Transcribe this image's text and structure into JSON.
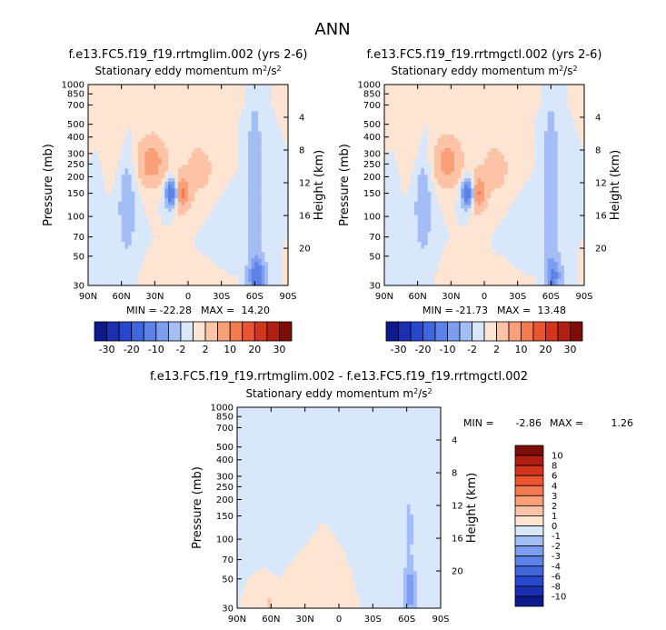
{
  "page_title": "ANN",
  "chart_data": [
    {
      "type": "heatmap",
      "id": "p1",
      "title": "f.e13.FC5.f19_f19.rrtmglim.002 (yrs 2-6)",
      "subtitle": "Stationary eddy momentum",
      "units_base": "m",
      "units_sup1": "2",
      "units_mid": "/s",
      "units_sup2": "2",
      "ylabel": "Pressure (mb)",
      "ylabel_right": "Height (km)",
      "xlim": [
        90,
        -90
      ],
      "x_ticks": [
        "90N",
        "60N",
        "30N",
        "0",
        "30S",
        "60S",
        "90S"
      ],
      "y_ticks": [
        "30",
        "50",
        "70",
        "100",
        "150",
        "200",
        "250",
        "300",
        "400",
        "500",
        "700",
        "850",
        "1000"
      ],
      "height_ticks": [
        "20",
        "16",
        "12",
        "8",
        "4"
      ],
      "min_label": "MIN =",
      "min_value": "-22.28",
      "max_label": "MAX =",
      "max_value": "14.20",
      "features": [
        {
          "lat": 8,
          "p": 150,
          "value": 14.2,
          "lat_w": 8,
          "lp_w": 0.28
        },
        {
          "lat": 33,
          "p": 260,
          "value": 9,
          "lat_w": 12,
          "lp_w": 0.4
        },
        {
          "lat": -10,
          "p": 230,
          "value": 3,
          "lat_w": 16,
          "lp_w": 0.55
        },
        {
          "lat": 72,
          "p": 400,
          "value": 2,
          "lat_w": 14,
          "lp_w": 0.6
        },
        {
          "lat": 12,
          "p": 600,
          "value": 1.5,
          "lat_w": 20,
          "lp_w": 0.3
        },
        {
          "lat": -15,
          "p": 850,
          "value": 1.2,
          "lat_w": 25,
          "lp_w": 0.25
        },
        {
          "lat": -5,
          "p": 35,
          "value": 1.5,
          "lat_w": 30,
          "lp_w": 0.25
        },
        {
          "lat": 14,
          "p": 150,
          "value": -22.28,
          "lat_w": 6,
          "lp_w": 0.24
        },
        {
          "lat": 55,
          "p": 120,
          "value": -4,
          "lat_w": 8,
          "lp_w": 0.9
        },
        {
          "lat": -62,
          "p": 35,
          "value": -14,
          "lat_w": 7,
          "lp_w": 0.35
        },
        {
          "lat": -60,
          "p": 180,
          "value": -6,
          "lat_w": 6,
          "lp_w": 1.2
        },
        {
          "lat": -35,
          "p": 70,
          "value": -1.5,
          "lat_w": 14,
          "lp_w": 0.6
        },
        {
          "lat": 82,
          "p": 200,
          "value": -1.2,
          "lat_w": 6,
          "lp_w": 1.0
        }
      ]
    },
    {
      "type": "heatmap",
      "id": "p2",
      "title": "f.e13.FC5.f19_f19.rrtmgctl.002 (yrs 2-6)",
      "subtitle": "Stationary eddy momentum",
      "units_base": "m",
      "units_sup1": "2",
      "units_mid": "/s",
      "units_sup2": "2",
      "ylabel": "Pressure (mb)",
      "ylabel_right": "Height (km)",
      "xlim": [
        90,
        -90
      ],
      "x_ticks": [
        "90N",
        "60N",
        "30N",
        "0",
        "30S",
        "60S",
        "90S"
      ],
      "y_ticks": [
        "30",
        "50",
        "70",
        "100",
        "150",
        "200",
        "250",
        "300",
        "400",
        "500",
        "700",
        "850",
        "1000"
      ],
      "height_ticks": [
        "20",
        "16",
        "12",
        "8",
        "4"
      ],
      "min_label": "MIN =",
      "min_value": "-21.73",
      "max_label": "MAX =",
      "max_value": "13.48",
      "features": [
        {
          "lat": 8,
          "p": 150,
          "value": 13.48,
          "lat_w": 8,
          "lp_w": 0.28
        },
        {
          "lat": 33,
          "p": 260,
          "value": 8.5,
          "lat_w": 12,
          "lp_w": 0.4
        },
        {
          "lat": -10,
          "p": 230,
          "value": 3,
          "lat_w": 16,
          "lp_w": 0.55
        },
        {
          "lat": 72,
          "p": 400,
          "value": 2,
          "lat_w": 14,
          "lp_w": 0.6
        },
        {
          "lat": 12,
          "p": 600,
          "value": 1.5,
          "lat_w": 20,
          "lp_w": 0.3
        },
        {
          "lat": -15,
          "p": 850,
          "value": 1.2,
          "lat_w": 25,
          "lp_w": 0.25
        },
        {
          "lat": -5,
          "p": 35,
          "value": 1.5,
          "lat_w": 30,
          "lp_w": 0.25
        },
        {
          "lat": 14,
          "p": 150,
          "value": -21.73,
          "lat_w": 6,
          "lp_w": 0.24
        },
        {
          "lat": 55,
          "p": 120,
          "value": -4,
          "lat_w": 8,
          "lp_w": 0.9
        },
        {
          "lat": -62,
          "p": 35,
          "value": -11,
          "lat_w": 7,
          "lp_w": 0.35
        },
        {
          "lat": -60,
          "p": 180,
          "value": -6,
          "lat_w": 6,
          "lp_w": 1.2
        },
        {
          "lat": -35,
          "p": 70,
          "value": -1.5,
          "lat_w": 14,
          "lp_w": 0.6
        },
        {
          "lat": 82,
          "p": 200,
          "value": -1.2,
          "lat_w": 6,
          "lp_w": 1.0
        }
      ]
    },
    {
      "type": "heatmap",
      "id": "p3",
      "title": "f.e13.FC5.f19_f19.rrtmglim.002 - f.e13.FC5.f19_f19.rrtmgctl.002",
      "subtitle": "Stationary eddy momentum",
      "units_base": "m",
      "units_sup1": "2",
      "units_mid": "/s",
      "units_sup2": "2",
      "ylabel": "Pressure (mb)",
      "ylabel_right": "Height (km)",
      "xlim": [
        90,
        -90
      ],
      "x_ticks": [
        "90N",
        "60N",
        "30N",
        "0",
        "30S",
        "60S",
        "90S"
      ],
      "y_ticks": [
        "30",
        "50",
        "70",
        "100",
        "150",
        "200",
        "250",
        "300",
        "400",
        "500",
        "700",
        "850",
        "1000"
      ],
      "height_ticks": [
        "20",
        "16",
        "12",
        "8",
        "4"
      ],
      "min_label": "MIN =",
      "min_value": "-2.86",
      "max_label": "MAX =",
      "max_value": "1.26",
      "features": [
        {
          "lat": -63,
          "p": 40,
          "value": -2.86,
          "lat_w": 6,
          "lp_w": 0.4
        },
        {
          "lat": -62,
          "p": 120,
          "value": -1.3,
          "lat_w": 6,
          "lp_w": 0.8
        },
        {
          "lat": 62,
          "p": 33,
          "value": 1.26,
          "lat_w": 4,
          "lp_w": 0.15
        },
        {
          "lat": -25,
          "p": 250,
          "value": -0.8,
          "lat_w": 16,
          "lp_w": 0.7
        },
        {
          "lat": 35,
          "p": 400,
          "value": -0.6,
          "lat_w": 10,
          "lp_w": 0.8
        },
        {
          "lat": 5,
          "p": 900,
          "value": -0.6,
          "lat_w": 15,
          "lp_w": 0.2
        },
        {
          "lat": 80,
          "p": 700,
          "value": -0.6,
          "lat_w": 6,
          "lp_w": 0.5
        },
        {
          "lat": -80,
          "p": 300,
          "value": -0.5,
          "lat_w": 5,
          "lp_w": 1.0
        },
        {
          "lat": 15,
          "p": 50,
          "value": 0.6,
          "lat_w": 12,
          "lp_w": 0.4
        }
      ]
    }
  ],
  "colorbars": {
    "top": {
      "orientation": "horizontal",
      "labels": [
        "-30",
        "-20",
        "-10",
        "-2",
        "2",
        "10",
        "20",
        "30"
      ],
      "colors": [
        "#0c1a8c",
        "#1b30b0",
        "#2947cc",
        "#3f66dd",
        "#5c82e8",
        "#7d9df0",
        "#a3bdf5",
        "#d9e7fb",
        "#fde4d3",
        "#fcc3a7",
        "#f9a079",
        "#f47a52",
        "#eb5431",
        "#d3341c",
        "#b01f12",
        "#7e0c08"
      ]
    },
    "bottom": {
      "orientation": "vertical",
      "labels": [
        "10",
        "8",
        "6",
        "4",
        "3",
        "2",
        "1",
        "0",
        "-1",
        "-2",
        "-3",
        "-4",
        "-6",
        "-8",
        "-10"
      ],
      "colors": [
        "#7e0c08",
        "#b01f12",
        "#d3341c",
        "#eb5431",
        "#f47a52",
        "#f9a079",
        "#fcc3a7",
        "#fde4d3",
        "#d9e7fb",
        "#a3bdf5",
        "#7d9df0",
        "#5c82e8",
        "#3f66dd",
        "#2947cc",
        "#1b30b0",
        "#0c1a8c"
      ]
    }
  },
  "levels_top": [
    -30,
    -25,
    -20,
    -15,
    -10,
    -6,
    -2,
    0,
    2,
    6,
    10,
    15,
    20,
    25,
    30
  ],
  "levels_bottom": [
    -10,
    -8,
    -6,
    -4,
    -3,
    -2,
    -1,
    0,
    1,
    2,
    3,
    4,
    6,
    8,
    10
  ]
}
